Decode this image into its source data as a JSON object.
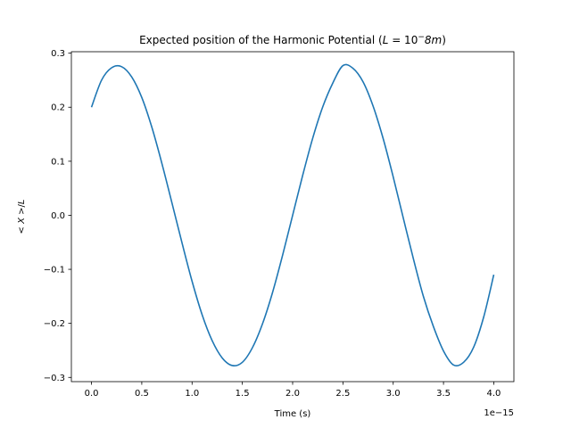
{
  "chart_data": {
    "type": "line",
    "title": {
      "prefix": "Expected position of the Harmonic Potential (",
      "var": "L",
      "eq": " = 10",
      "sup": "−",
      "val": "8",
      "unit": "m",
      "suffix": ")"
    },
    "xlabel": "Time (s)",
    "ylabel": {
      "lt": "< ",
      "var": "X",
      "gt": " >/",
      "unit": "L"
    },
    "x_offset_text": "1e−15",
    "x_scale": 1e-15,
    "xlim": [
      -0.2,
      4.2
    ],
    "ylim": [
      -0.3078,
      0.3027
    ],
    "grid": false,
    "legend": "none",
    "colors": {
      "line": "#1f77b4",
      "axes": "#000000"
    },
    "x_ticks": [
      {
        "value": 0.0,
        "label": "0.0"
      },
      {
        "value": 0.5,
        "label": "0.5"
      },
      {
        "value": 1.0,
        "label": "1.0"
      },
      {
        "value": 1.5,
        "label": "1.5"
      },
      {
        "value": 2.0,
        "label": "2.0"
      },
      {
        "value": 2.5,
        "label": "2.5"
      },
      {
        "value": 3.0,
        "label": "3.0"
      },
      {
        "value": 3.5,
        "label": "3.5"
      },
      {
        "value": 4.0,
        "label": "4.0"
      }
    ],
    "y_ticks": [
      {
        "value": 0.3,
        "label": "0.3"
      },
      {
        "value": 0.2,
        "label": "0.2"
      },
      {
        "value": 0.1,
        "label": "0.1"
      },
      {
        "value": 0.0,
        "label": "0.0"
      },
      {
        "value": -0.1,
        "label": "−0.1"
      },
      {
        "value": -0.2,
        "label": "−0.2"
      },
      {
        "value": -0.3,
        "label": "−0.3"
      }
    ],
    "series": [
      {
        "x": [
          0.0,
          0.1,
          0.2,
          0.3,
          0.4,
          0.5,
          0.6,
          0.7,
          0.8,
          0.9,
          1.0,
          1.1,
          1.2,
          1.3,
          1.4,
          1.5,
          1.6,
          1.7,
          1.8,
          1.9,
          2.0,
          2.1,
          2.2,
          2.3,
          2.4,
          2.5,
          2.6,
          2.7,
          2.8,
          2.9,
          3.0,
          3.1,
          3.2,
          3.3,
          3.4,
          3.5,
          3.6,
          3.7,
          3.8,
          3.9,
          4.0
        ],
        "y": [
          0.2,
          0.25,
          0.273,
          0.275,
          0.256,
          0.218,
          0.163,
          0.096,
          0.023,
          -0.051,
          -0.122,
          -0.184,
          -0.232,
          -0.264,
          -0.278,
          -0.272,
          -0.245,
          -0.201,
          -0.143,
          -0.074,
          0.0,
          0.074,
          0.143,
          0.201,
          0.245,
          0.277,
          0.272,
          0.247,
          0.202,
          0.142,
          0.071,
          -0.005,
          -0.08,
          -0.15,
          -0.206,
          -0.251,
          -0.277,
          -0.272,
          -0.244,
          -0.188,
          -0.11
        ]
      }
    ]
  }
}
